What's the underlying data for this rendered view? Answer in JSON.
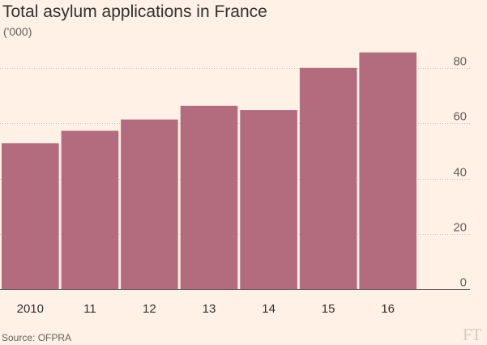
{
  "header": {
    "title": "Total asylum applications in France",
    "subtitle": "('000)"
  },
  "footer": {
    "source": "Source: OFPRA",
    "logo_text": "FT"
  },
  "colors": {
    "background": "#fff1e5",
    "bar": "#b36b7e",
    "gridline": "#ccc1b7",
    "text": "#33302e",
    "muted_text": "#66605c"
  },
  "chart_data": {
    "type": "bar",
    "title": "Total asylum applications in France",
    "subtitle": "('000)",
    "xlabel": "",
    "ylabel": "",
    "categories": [
      "2010",
      "11",
      "12",
      "13",
      "14",
      "15",
      "16"
    ],
    "values": [
      52.8,
      57.3,
      61.4,
      66.3,
      64.8,
      80.1,
      85.7
    ],
    "ylim": [
      0,
      90
    ],
    "yticks": [
      0,
      20,
      40,
      60,
      80
    ],
    "y_axis_side": "right",
    "grid": true,
    "legend": "none"
  }
}
